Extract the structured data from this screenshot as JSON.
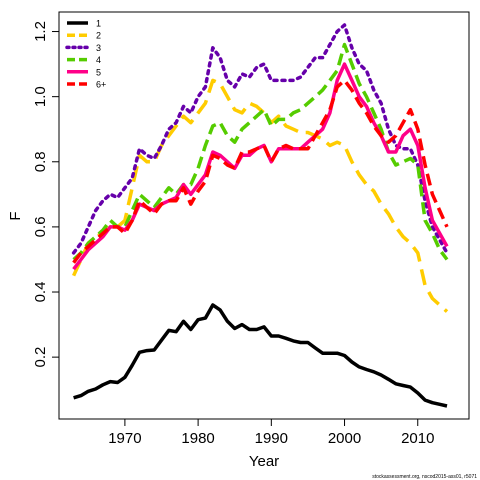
{
  "chart_data": {
    "type": "line",
    "title": "",
    "xlabel": "Year",
    "ylabel": "F",
    "xlim": [
      1961,
      2017
    ],
    "ylim": [
      0.01,
      1.26
    ],
    "x_ticks": [
      "1970",
      "1980",
      "1990",
      "2000",
      "2010"
    ],
    "y_ticks": [
      "0.2",
      "0.4",
      "0.6",
      "0.8",
      "1.0",
      "1.2"
    ],
    "grid": false,
    "legend_position": "top-left",
    "footnote": "stockassessment.org, nscod2015-ass01, r5071",
    "x": [
      1963,
      1964,
      1965,
      1966,
      1967,
      1968,
      1969,
      1970,
      1971,
      1972,
      1973,
      1974,
      1975,
      1976,
      1977,
      1978,
      1979,
      1980,
      1981,
      1982,
      1983,
      1984,
      1985,
      1986,
      1987,
      1988,
      1989,
      1990,
      1991,
      1992,
      1993,
      1994,
      1995,
      1996,
      1997,
      1998,
      1999,
      2000,
      2001,
      2002,
      2003,
      2004,
      2005,
      2006,
      2007,
      2008,
      2009,
      2010,
      2011,
      2012,
      2013,
      2014
    ],
    "series": [
      {
        "name": "1",
        "color": "#000000",
        "dash": "",
        "values": [
          0.075,
          0.082,
          0.095,
          0.102,
          0.115,
          0.125,
          0.122,
          0.138,
          0.175,
          0.215,
          0.22,
          0.222,
          0.252,
          0.282,
          0.278,
          0.31,
          0.285,
          0.315,
          0.32,
          0.36,
          0.345,
          0.31,
          0.288,
          0.3,
          0.285,
          0.285,
          0.293,
          0.265,
          0.265,
          0.258,
          0.25,
          0.245,
          0.245,
          0.228,
          0.212,
          0.212,
          0.212,
          0.205,
          0.185,
          0.17,
          0.162,
          0.155,
          0.145,
          0.132,
          0.118,
          0.113,
          0.108,
          0.09,
          0.068,
          0.06,
          0.055,
          0.05
        ]
      },
      {
        "name": "2",
        "color": "#ffcc00",
        "dash": "16,8",
        "values": [
          0.45,
          0.5,
          0.55,
          0.57,
          0.58,
          0.6,
          0.6,
          0.62,
          0.72,
          0.82,
          0.8,
          0.8,
          0.85,
          0.88,
          0.91,
          0.94,
          0.92,
          0.95,
          0.98,
          1.05,
          1.04,
          1.0,
          0.96,
          0.95,
          0.98,
          0.97,
          0.95,
          0.92,
          0.94,
          0.91,
          0.9,
          0.89,
          0.89,
          0.88,
          0.87,
          0.85,
          0.86,
          0.85,
          0.8,
          0.76,
          0.73,
          0.71,
          0.67,
          0.64,
          0.6,
          0.57,
          0.55,
          0.52,
          0.42,
          0.38,
          0.36,
          0.34
        ]
      },
      {
        "name": "3",
        "color": "#6600aa",
        "dash": "3,5",
        "values": [
          0.52,
          0.55,
          0.6,
          0.65,
          0.68,
          0.7,
          0.69,
          0.72,
          0.75,
          0.84,
          0.82,
          0.81,
          0.85,
          0.9,
          0.92,
          0.97,
          0.95,
          1.0,
          1.03,
          1.15,
          1.12,
          1.05,
          1.03,
          1.07,
          1.06,
          1.09,
          1.1,
          1.05,
          1.05,
          1.05,
          1.05,
          1.06,
          1.09,
          1.12,
          1.12,
          1.16,
          1.2,
          1.22,
          1.15,
          1.1,
          1.08,
          1.02,
          0.98,
          0.9,
          0.85,
          0.84,
          0.84,
          0.79,
          0.68,
          0.6,
          0.56,
          0.52
        ]
      },
      {
        "name": "4",
        "color": "#55cc00",
        "dash": "12,6",
        "values": [
          0.5,
          0.52,
          0.55,
          0.57,
          0.59,
          0.62,
          0.6,
          0.6,
          0.65,
          0.7,
          0.68,
          0.66,
          0.69,
          0.72,
          0.7,
          0.73,
          0.73,
          0.78,
          0.85,
          0.91,
          0.92,
          0.88,
          0.86,
          0.9,
          0.92,
          0.94,
          0.96,
          0.91,
          0.93,
          0.93,
          0.95,
          0.96,
          0.98,
          1.0,
          1.02,
          1.05,
          1.08,
          1.16,
          1.1,
          1.04,
          1.0,
          0.95,
          0.9,
          0.83,
          0.79,
          0.8,
          0.81,
          0.79,
          0.62,
          0.58,
          0.53,
          0.5
        ]
      },
      {
        "name": "5",
        "color": "#ff0088",
        "dash": "",
        "values": [
          0.47,
          0.5,
          0.53,
          0.55,
          0.57,
          0.6,
          0.6,
          0.59,
          0.62,
          0.67,
          0.66,
          0.65,
          0.67,
          0.68,
          0.69,
          0.73,
          0.7,
          0.73,
          0.76,
          0.83,
          0.82,
          0.8,
          0.78,
          0.82,
          0.82,
          0.84,
          0.85,
          0.8,
          0.84,
          0.84,
          0.84,
          0.84,
          0.86,
          0.88,
          0.9,
          0.95,
          1.05,
          1.1,
          1.05,
          1.0,
          0.97,
          0.92,
          0.88,
          0.83,
          0.83,
          0.88,
          0.9,
          0.85,
          0.72,
          0.62,
          0.58,
          0.54
        ]
      },
      {
        "name": "6+",
        "color": "#ff0000",
        "dash": "12,6",
        "values": [
          0.49,
          0.52,
          0.54,
          0.56,
          0.58,
          0.6,
          0.6,
          0.58,
          0.62,
          0.68,
          0.66,
          0.64,
          0.67,
          0.68,
          0.68,
          0.72,
          0.67,
          0.71,
          0.74,
          0.82,
          0.81,
          0.79,
          0.78,
          0.83,
          0.83,
          0.84,
          0.85,
          0.8,
          0.84,
          0.85,
          0.84,
          0.84,
          0.84,
          0.88,
          0.92,
          0.96,
          1.03,
          1.05,
          1.02,
          0.98,
          0.95,
          0.91,
          0.88,
          0.86,
          0.88,
          0.92,
          0.96,
          0.9,
          0.79,
          0.7,
          0.65,
          0.6
        ]
      }
    ]
  }
}
